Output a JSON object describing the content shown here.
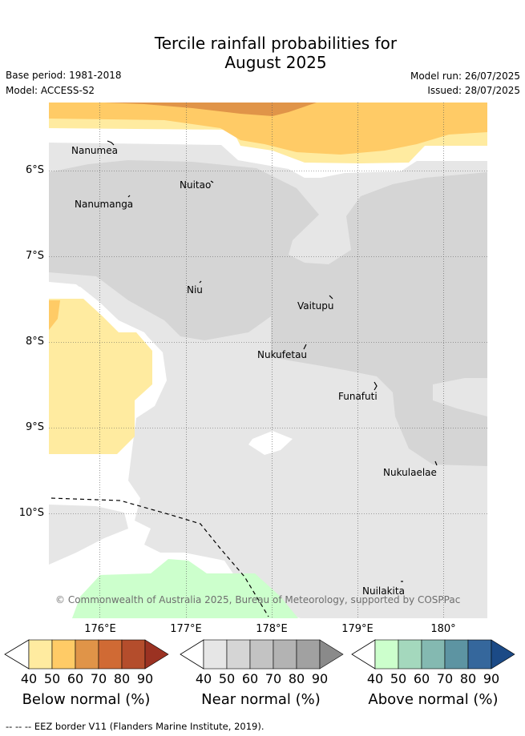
{
  "title_line1": "Tercile rainfall probabilities for",
  "title_line2": "August 2025",
  "base_period": "Base period: 1981-2018",
  "model": "Model: ACCESS-S2",
  "model_run": "Model run: 26/07/2025",
  "issued": "Issued: 28/07/2025",
  "latitude_labels": [
    "6°S",
    "7°S",
    "8°S",
    "9°S",
    "10°S"
  ],
  "longitude_labels": [
    "176°E",
    "177°E",
    "178°E",
    "179°E",
    "180°"
  ],
  "islands": [
    {
      "name": "Nanumea"
    },
    {
      "name": "Nuitao"
    },
    {
      "name": "Nanumanga"
    },
    {
      "name": "Niu"
    },
    {
      "name": "Vaitupu"
    },
    {
      "name": "Nukufetau"
    },
    {
      "name": "Funafuti"
    },
    {
      "name": "Nukulaelae"
    },
    {
      "name": "Nuilakita"
    }
  ],
  "copyright": "© Commonwealth of Australia 2025, Bureau of Meteorology, supported by COSPPac",
  "colorbars": [
    {
      "title": "Below normal (%)",
      "ticks": [
        "40",
        "50",
        "60",
        "70",
        "80",
        "90"
      ],
      "colors": [
        "#ffeba0",
        "#ffcb66",
        "#e09448",
        "#d06a34",
        "#b44d2c",
        "#9b3222"
      ]
    },
    {
      "title": "Near normal (%)",
      "ticks": [
        "40",
        "50",
        "60",
        "70",
        "80",
        "90"
      ],
      "colors": [
        "#e6e6e6",
        "#d5d5d5",
        "#c3c3c3",
        "#b3b3b3",
        "#a1a1a1",
        "#8a8a8a"
      ]
    },
    {
      "title": "Above normal (%)",
      "ticks": [
        "40",
        "50",
        "60",
        "70",
        "80",
        "90"
      ],
      "colors": [
        "#ccffcc",
        "#a4d8bd",
        "#84b9b1",
        "#5d94a2",
        "#35679c",
        "#1b4a86"
      ]
    }
  ],
  "footnote": "--  --  -- EEZ border V11 (Flanders Marine Institute, 2019)."
}
